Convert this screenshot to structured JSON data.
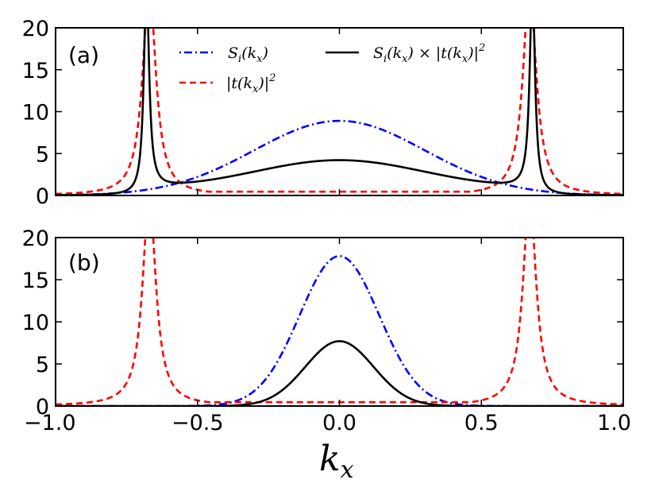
{
  "chart_data": {
    "type": "line",
    "xlabel": "k_x",
    "xlabel_main": "k",
    "xlabel_sub": "x",
    "xlim": [
      -1.0,
      1.0
    ],
    "x_ticks": [
      -1.0,
      -0.5,
      0.0,
      0.5,
      1.0
    ],
    "x_tick_labels": [
      "−1.0",
      "−0.5",
      "0.0",
      "0.5",
      "1.0"
    ],
    "panels": [
      {
        "label": "(a)",
        "ylim": [
          0,
          20
        ],
        "y_ticks": [
          0,
          5,
          10,
          15,
          20
        ],
        "y_tick_labels": [
          "0",
          "5",
          "10",
          "15",
          "20"
        ],
        "series": [
          {
            "name": "S_i(k_x)",
            "color": "#0000ff",
            "style": "dashdot",
            "kind": "gauss",
            "amp": 8.9,
            "sigma": 0.3
          },
          {
            "name": "|t(k_x)|^2",
            "color": "#ff0000",
            "style": "dashed",
            "kind": "lorentz_pair",
            "k0": 0.67,
            "gamma": 0.028,
            "scale": 0.5,
            "cap": 25
          },
          {
            "name": "S_i(k_x) × |t(k_x)|^2",
            "color": "#000000",
            "style": "solid",
            "kind": "lorentz_product",
            "k0": 0.68,
            "gamma": 0.011,
            "scale": 0.5,
            "base": 0.4,
            "amp": 3.5,
            "sigma": 0.3,
            "cap": 25
          }
        ]
      },
      {
        "label": "(b)",
        "ylim": [
          0,
          20
        ],
        "y_ticks": [
          0,
          5,
          10,
          15,
          20
        ],
        "y_tick_labels": [
          "0",
          "5",
          "10",
          "15",
          "20"
        ],
        "series": [
          {
            "name": "S_i(k_x)",
            "color": "#0000ff",
            "style": "dashdot",
            "kind": "gauss",
            "amp": 17.8,
            "sigma": 0.14
          },
          {
            "name": "|t(k_x)|^2",
            "color": "#ff0000",
            "style": "dashed",
            "kind": "lorentz_pair",
            "k0": 0.67,
            "gamma": 0.028,
            "scale": 0.5,
            "cap": 25
          },
          {
            "name": "S_i(k_x) × |t(k_x)|^2",
            "color": "#000000",
            "style": "solid",
            "kind": "gauss",
            "amp": 7.7,
            "sigma": 0.12
          }
        ]
      }
    ],
    "legend": {
      "location": "top of panel (a)",
      "entries": [
        {
          "main": "S",
          "sub": "i",
          "arg_main": "k",
          "arg_sub": "x",
          "tail": "",
          "color": "#0000ff",
          "style": "dashdot"
        },
        {
          "main": "|t",
          "sub": "",
          "arg_main": "k",
          "arg_sub": "x",
          "tail": "|",
          "sup": "2",
          "color": "#ff0000",
          "style": "dashed"
        },
        {
          "main": "S",
          "sub": "i",
          "arg_main": "k",
          "arg_sub": "x",
          "tail": " × |t(k",
          "tail_sub": "x",
          "tail_end": ")|",
          "sup": "2",
          "color": "#000000",
          "style": "solid"
        }
      ]
    }
  }
}
